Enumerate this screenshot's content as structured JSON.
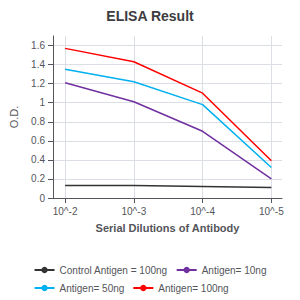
{
  "chart_data": {
    "type": "line",
    "title": "ELISA Result",
    "ylabel": "O.D.",
    "xlabel": "Serial Dilutions of Antibody",
    "x": [
      0.01,
      0.001,
      0.0001,
      1e-05
    ],
    "xlim": [
      0.015,
      7e-06
    ],
    "xticks": [
      {
        "value": 0.01,
        "label": "10^-2"
      },
      {
        "value": 0.001,
        "label": "10^-3"
      },
      {
        "value": 0.0001,
        "label": "10^-4"
      },
      {
        "value": 1e-05,
        "label": "10^-5"
      }
    ],
    "log": "x",
    "ylim": [
      0,
      1.7
    ],
    "yticks": [
      0,
      0.2,
      0.4,
      0.6,
      0.8,
      1.0,
      1.2,
      1.4,
      1.6
    ],
    "grid": true,
    "legend": "bottom",
    "series": [
      {
        "name": "Control Antigen = 100ng",
        "color": "#333333",
        "values": [
          0.13,
          0.13,
          0.12,
          0.11
        ]
      },
      {
        "name": "Antigen= 10ng",
        "color": "#7030A0",
        "values": [
          1.21,
          1.01,
          0.7,
          0.2
        ]
      },
      {
        "name": "Antigen= 50ng",
        "color": "#00B0F0",
        "values": [
          1.35,
          1.22,
          0.98,
          0.32
        ]
      },
      {
        "name": "Antigen= 100ng",
        "color": "#FF0000",
        "values": [
          1.57,
          1.43,
          1.1,
          0.39
        ]
      }
    ]
  }
}
